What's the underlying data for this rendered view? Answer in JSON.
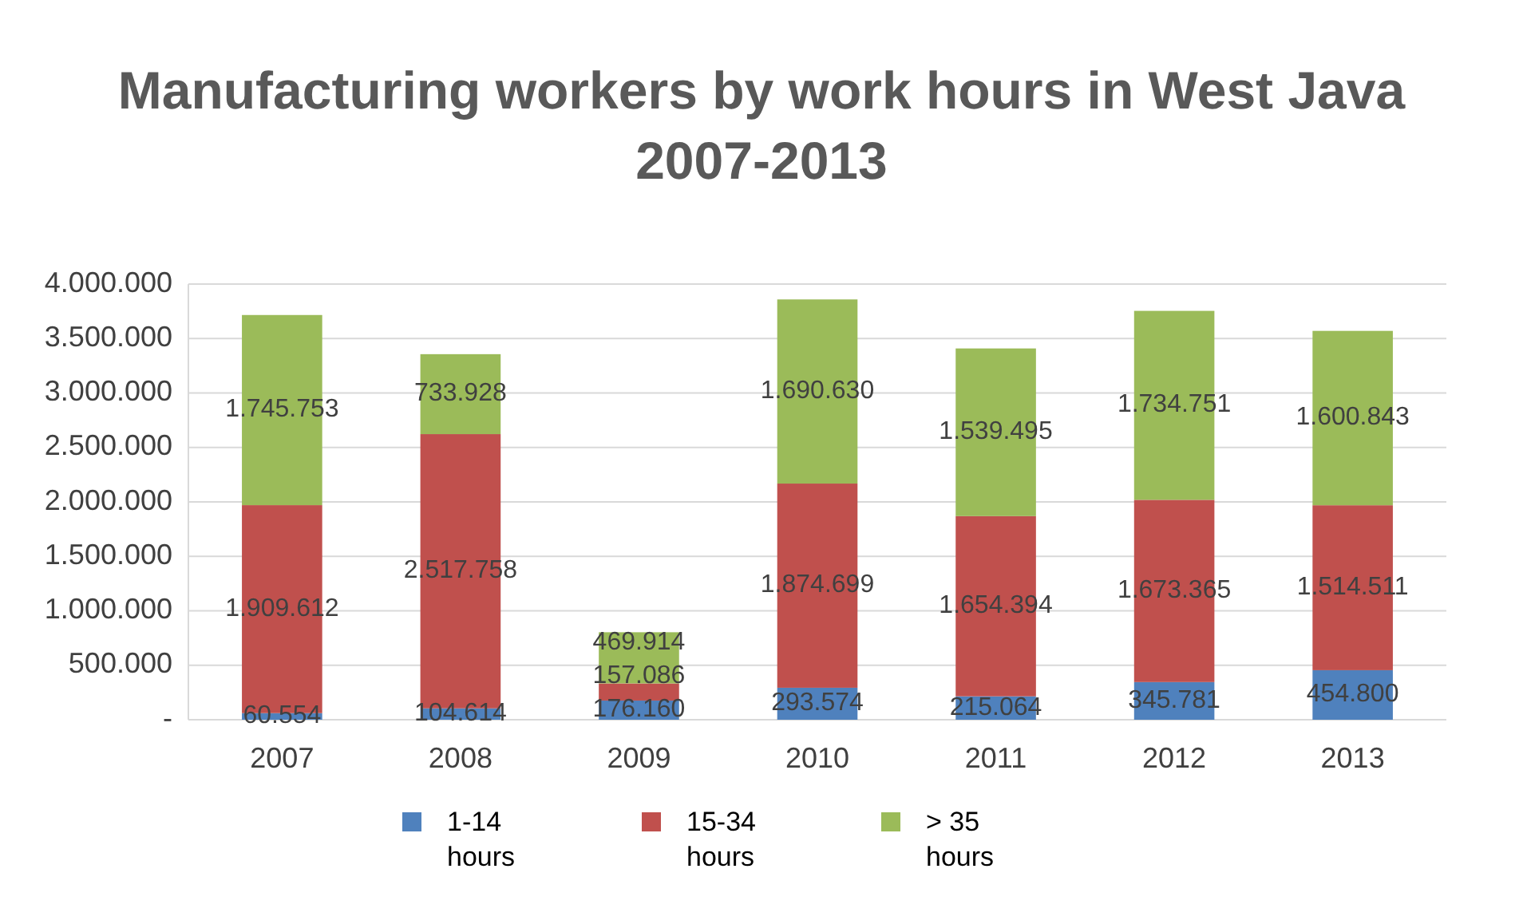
{
  "chart_data": {
    "type": "bar",
    "stacked": true,
    "title": "Manufacturing workers by work hours in West Java 2007-2013",
    "categories": [
      "2007",
      "2008",
      "2009",
      "2010",
      "2011",
      "2012",
      "2013"
    ],
    "series": [
      {
        "name": "1-14 hours",
        "color": "#4f81bd",
        "values": [
          60554,
          104614,
          176160,
          293574,
          215064,
          345781,
          454800
        ],
        "value_labels": [
          "60.554",
          "104.614",
          "176.160",
          "293.574",
          "215.064",
          "345.781",
          "454.800"
        ]
      },
      {
        "name": "15-34 hours",
        "color": "#c0504d",
        "values": [
          1909612,
          2517758,
          157086,
          1874699,
          1654394,
          1673365,
          1514511
        ],
        "value_labels": [
          "1.909.612",
          "2.517.758",
          "157.086",
          "1.874.699",
          "1.654.394",
          "1.673.365",
          "1.514.511"
        ]
      },
      {
        "name": "> 35 hours",
        "color": "#9bbb59",
        "values": [
          1745753,
          733928,
          469914,
          1690630,
          1539495,
          1734751,
          1600843
        ],
        "value_labels": [
          "1.745.753",
          "733.928",
          "469.914",
          "1.690.630",
          "1.539.495",
          "1.734.751",
          "1.600.843"
        ]
      }
    ],
    "ylim": [
      0,
      4000000
    ],
    "yticks": [
      {
        "value": 0,
        "label": "-"
      },
      {
        "value": 500000,
        "label": "500.000"
      },
      {
        "value": 1000000,
        "label": "1.000.000"
      },
      {
        "value": 1500000,
        "label": "1.500.000"
      },
      {
        "value": 2000000,
        "label": "2.000.000"
      },
      {
        "value": 2500000,
        "label": "2.500.000"
      },
      {
        "value": 3000000,
        "label": "3.000.000"
      },
      {
        "value": 3500000,
        "label": "3.500.000"
      },
      {
        "value": 4000000,
        "label": "4.000.000"
      }
    ],
    "grid": true,
    "legend": "bottom"
  }
}
